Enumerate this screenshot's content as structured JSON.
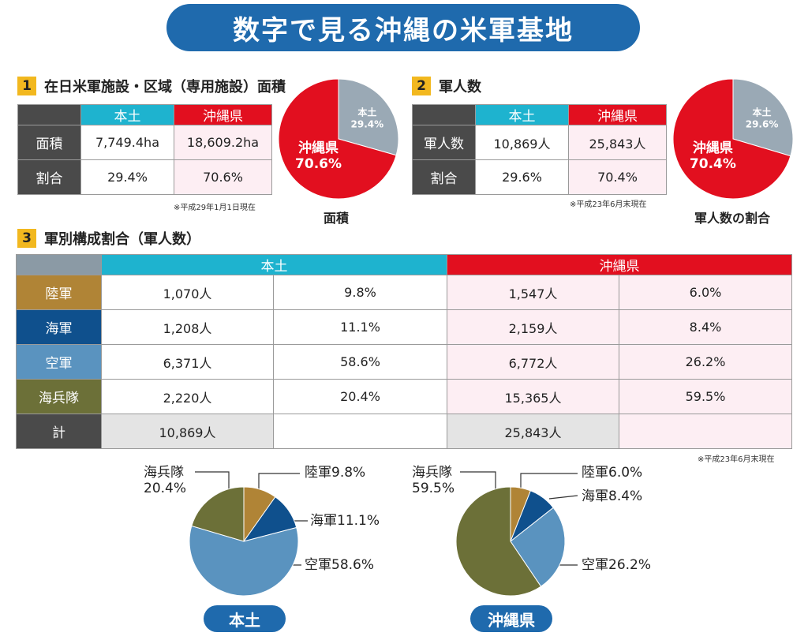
{
  "title": "数字で見る沖縄の米軍基地",
  "sections": {
    "s1": {
      "num": "1",
      "title": "在日米軍施設・区域（専用施設）面積"
    },
    "s2": {
      "num": "2",
      "title": "軍人数"
    },
    "s3": {
      "num": "3",
      "title": "軍別構成割合（軍人数）"
    }
  },
  "table1": {
    "col_mainland": "本土",
    "col_okinawa": "沖縄県",
    "rows": [
      {
        "label": "面積",
        "mainland": "7,749.4ha",
        "okinawa": "18,609.2ha"
      },
      {
        "label": "割合",
        "mainland": "29.4%",
        "okinawa": "70.6%"
      }
    ],
    "note": "※平成29年1月1日現在"
  },
  "table2": {
    "col_mainland": "本土",
    "col_okinawa": "沖縄県",
    "rows": [
      {
        "label": "軍人数",
        "mainland": "10,869人",
        "okinawa": "25,843人"
      },
      {
        "label": "割合",
        "mainland": "29.6%",
        "okinawa": "70.4%"
      }
    ],
    "note": "※平成23年6月末現在"
  },
  "table3": {
    "col_mainland": "本土",
    "col_okinawa": "沖縄県",
    "rows": [
      {
        "label": "陸軍",
        "color": "#b08436",
        "m_count": "1,070人",
        "m_pct": "9.8%",
        "o_count": "1,547人",
        "o_pct": "6.0%"
      },
      {
        "label": "海軍",
        "color": "#0f508d",
        "m_count": "1,208人",
        "m_pct": "11.1%",
        "o_count": "2,159人",
        "o_pct": "8.4%"
      },
      {
        "label": "空軍",
        "color": "#5a93bf",
        "m_count": "6,371人",
        "m_pct": "58.6%",
        "o_count": "6,772人",
        "o_pct": "26.2%"
      },
      {
        "label": "海兵隊",
        "color": "#6c7038",
        "m_count": "2,220人",
        "m_pct": "20.4%",
        "o_count": "15,365人",
        "o_pct": "59.5%"
      }
    ],
    "total": {
      "label": "計",
      "m_count": "10,869人",
      "o_count": "25,843人"
    },
    "note": "※平成23年6月末現在"
  },
  "chart_data": [
    {
      "type": "pie",
      "title": "面積",
      "slices": [
        {
          "name": "本土",
          "label": "本土",
          "value_label": "29.4%",
          "value": 29.4,
          "color": "#9aa9b5"
        },
        {
          "name": "沖縄県",
          "label": "沖縄県",
          "value_label": "70.6%",
          "value": 70.6,
          "color": "#e20f1f"
        }
      ]
    },
    {
      "type": "pie",
      "title": "軍人数の割合",
      "slices": [
        {
          "name": "本土",
          "label": "本土",
          "value_label": "29.6%",
          "value": 29.6,
          "color": "#9aa9b5"
        },
        {
          "name": "沖縄県",
          "label": "沖縄県",
          "value_label": "70.4%",
          "value": 70.4,
          "color": "#e20f1f"
        }
      ]
    },
    {
      "type": "pie",
      "title": "本土",
      "slices": [
        {
          "name": "陸軍",
          "label": "陸軍9.8%",
          "value": 9.8,
          "color": "#b08436"
        },
        {
          "name": "海軍",
          "label": "海軍11.1%",
          "value": 11.1,
          "color": "#0f508d"
        },
        {
          "name": "空軍",
          "label": "空軍58.6%",
          "value": 58.6,
          "color": "#5a93bf"
        },
        {
          "name": "海兵隊",
          "label": "海兵隊",
          "value_label": "20.4%",
          "value": 20.4,
          "color": "#6c7038"
        }
      ]
    },
    {
      "type": "pie",
      "title": "沖縄県",
      "slices": [
        {
          "name": "陸軍",
          "label": "陸軍6.0%",
          "value": 6.0,
          "color": "#b08436"
        },
        {
          "name": "海軍",
          "label": "海軍8.4%",
          "value": 8.4,
          "color": "#0f508d"
        },
        {
          "name": "空軍",
          "label": "空軍26.2%",
          "value": 26.2,
          "color": "#5a93bf"
        },
        {
          "name": "海兵隊",
          "label": "海兵隊",
          "value_label": "59.5%",
          "value": 59.5,
          "color": "#6c7038"
        }
      ]
    }
  ]
}
